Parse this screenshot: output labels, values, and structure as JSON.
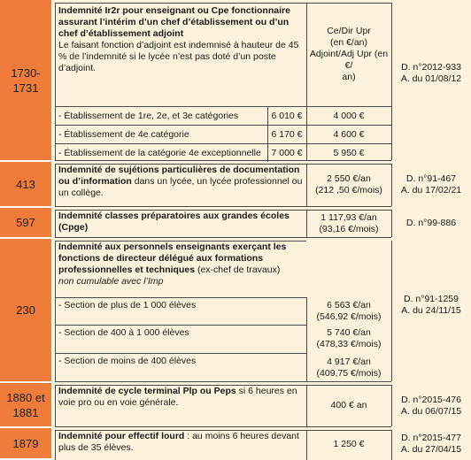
{
  "rows": [
    {
      "code": "1730-\n1731",
      "title": "Indemnité Ir2r pour enseignant ou Cpe fonctionnaire assurant l’intérim d’un chef d’établissement ou d’un chef d’établissement adjoint",
      "note": "Le faisant fonction d’adjoint est indemnisé à hauteur de 45 % de l’indemnité si le lycée n’est pas doté d’un poste d’adjoint.",
      "amount": "Ce/Dir Upr\n(en €/an)\nAdjoint/Adj Upr (en €/\nan)",
      "ref": "D. n°2012-933\nA. du 01/08/12",
      "sub": [
        {
          "label": "- Établissement de 1re, 2e, et 3e catégories",
          "v1": "6 010 €",
          "v2": "4 000 €"
        },
        {
          "label": "- Établissement de 4e catégorie",
          "v1": "6 170 €",
          "v2": "4 600 €"
        },
        {
          "label": "- Établissement de la catégorie 4e exceptionnelle",
          "v1": "7 000 €",
          "v2": "5 950 €"
        }
      ]
    },
    {
      "code": "413",
      "title": "Indemnité de sujétions particulières de documentation ou d’information",
      "rest": " dans un lycée, un lycée professionnel ou un collège.",
      "amount": "2 550 €/an\n(212 ,50 €/mois)",
      "ref": "D. n°91-467\nA. du 17/02/21"
    },
    {
      "code": "597",
      "title": "Indemnité classes préparatoires aux grandes écoles (Cpge)",
      "amount": "1 117,93 €/an\n(93,16 €/mois)",
      "ref": "D. n°99-886"
    },
    {
      "code": "230",
      "title": "Indemnité aux personnels enseignants exerçant les fonctions de directeur délégué aux formations professionnelles et techniques",
      "rest": " (ex-chef de travaux)",
      "note": "non cumulable avec l’Imp",
      "ref": "D. n°91-1259\nA. du 24/11/15",
      "sub": [
        {
          "label": "- Section de plus de 1 000 élèves",
          "value": "6 563 €/an\n(546,92 €/mois)"
        },
        {
          "label": "- Section de 400 à 1 000 élèves",
          "value": "5 740 €/an\n(478,33 €/mois)"
        },
        {
          "label": "- Section de moins de 400 élèves",
          "value": "4 917 €/an\n(409,75 €/mois)"
        }
      ]
    },
    {
      "code": "1880 et\n1881",
      "title": "Indemnité de cycle terminal Plp ou Peps",
      "rest": " si 6 heures en voie pro ou en voie générale.",
      "amount": "400 € an",
      "ref": "D. n°2015-476\nA. du 06/07/15"
    },
    {
      "code": "1879",
      "title": "Indemnité pour effectif lourd",
      "rest": " : au moins 6 heures devant plus de 35 élèves.",
      "amount": "1 250 €",
      "ref": "D. n°2015-477\nA. du 27/04/15"
    }
  ]
}
